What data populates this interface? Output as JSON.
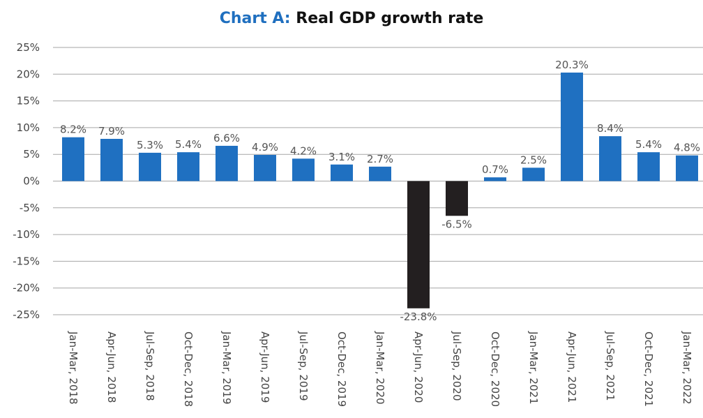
{
  "chart_data": {
    "type": "bar",
    "title_prefix": "Chart A:",
    "title": "Real GDP growth rate",
    "xlabel": "",
    "ylabel": "",
    "ylim": [
      -25,
      25
    ],
    "yticks": [
      25,
      20,
      15,
      10,
      5,
      0,
      -5,
      -10,
      -15,
      -20,
      -25
    ],
    "ytick_labels": [
      "25%",
      "20%",
      "15%",
      "10%",
      "5%",
      "0%",
      "-5%",
      "-10%",
      "-15%",
      "-20%",
      "-25%"
    ],
    "grid": true,
    "categories": [
      "Jan-Mar, 2018",
      "Apr-Jun, 2018",
      "Jul-Sep, 2018",
      "Oct-Dec, 2018",
      "Jan-Mar, 2019",
      "Apr-Jun, 2019",
      "Jul-Sep, 2019",
      "Oct-Dec, 2019",
      "Jan-Mar, 2020",
      "Apr-Jun, 2020",
      "Jul-Sep, 2020",
      "Oct-Dec, 2020",
      "Jan-Mar, 2021",
      "Apr-Jun, 2021",
      "Jul-Sep, 2021",
      "Oct-Dec, 2021",
      "Jan-Mar, 2022"
    ],
    "values": [
      8.2,
      7.9,
      5.3,
      5.4,
      6.6,
      4.9,
      4.2,
      3.1,
      2.7,
      -23.8,
      -6.5,
      0.7,
      2.5,
      20.3,
      8.4,
      5.4,
      4.8
    ],
    "data_labels": [
      "8.2%",
      "7.9%",
      "5.3%",
      "5.4%",
      "6.6%",
      "4.9%",
      "4.2%",
      "3.1%",
      "2.7%",
      "-23.8%",
      "-6.5%",
      "0.7%",
      "2.5%",
      "20.3%",
      "8.4%",
      "5.4%",
      "4.8%"
    ],
    "colors": {
      "positive": "#1f70c1",
      "negative": "#231f20",
      "grid": "#a6a6a6",
      "title_prefix": "#1f6fbf"
    }
  }
}
